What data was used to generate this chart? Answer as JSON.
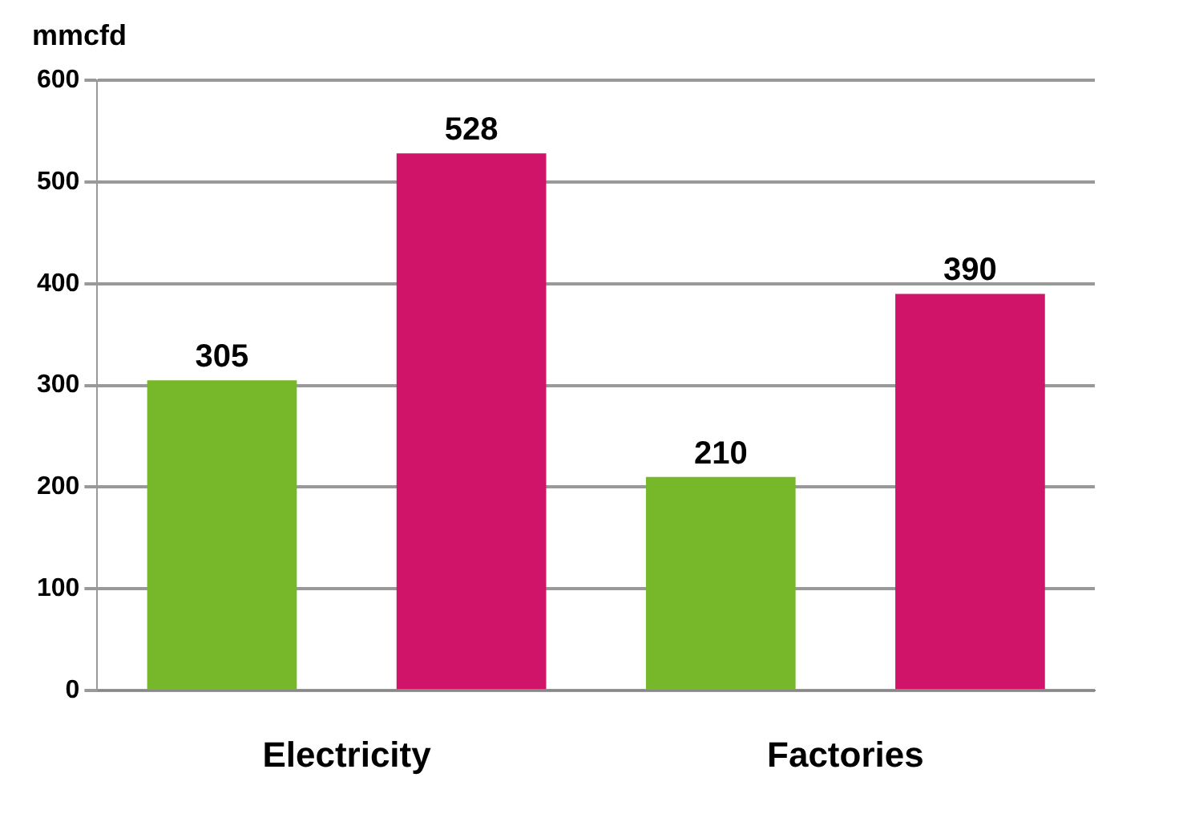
{
  "chart_data": {
    "type": "bar",
    "ylabel": "mmcfd",
    "categories": [
      "Electricity",
      "Factories"
    ],
    "series": [
      {
        "color": "#76b82a",
        "values": [
          305,
          210
        ]
      },
      {
        "color": "#d0146a",
        "values": [
          528,
          390
        ]
      }
    ],
    "ylim": [
      0,
      600
    ],
    "yticks": [
      0,
      100,
      200,
      300,
      400,
      500,
      600
    ],
    "grid": "y",
    "data_labels": true,
    "legend": false
  }
}
